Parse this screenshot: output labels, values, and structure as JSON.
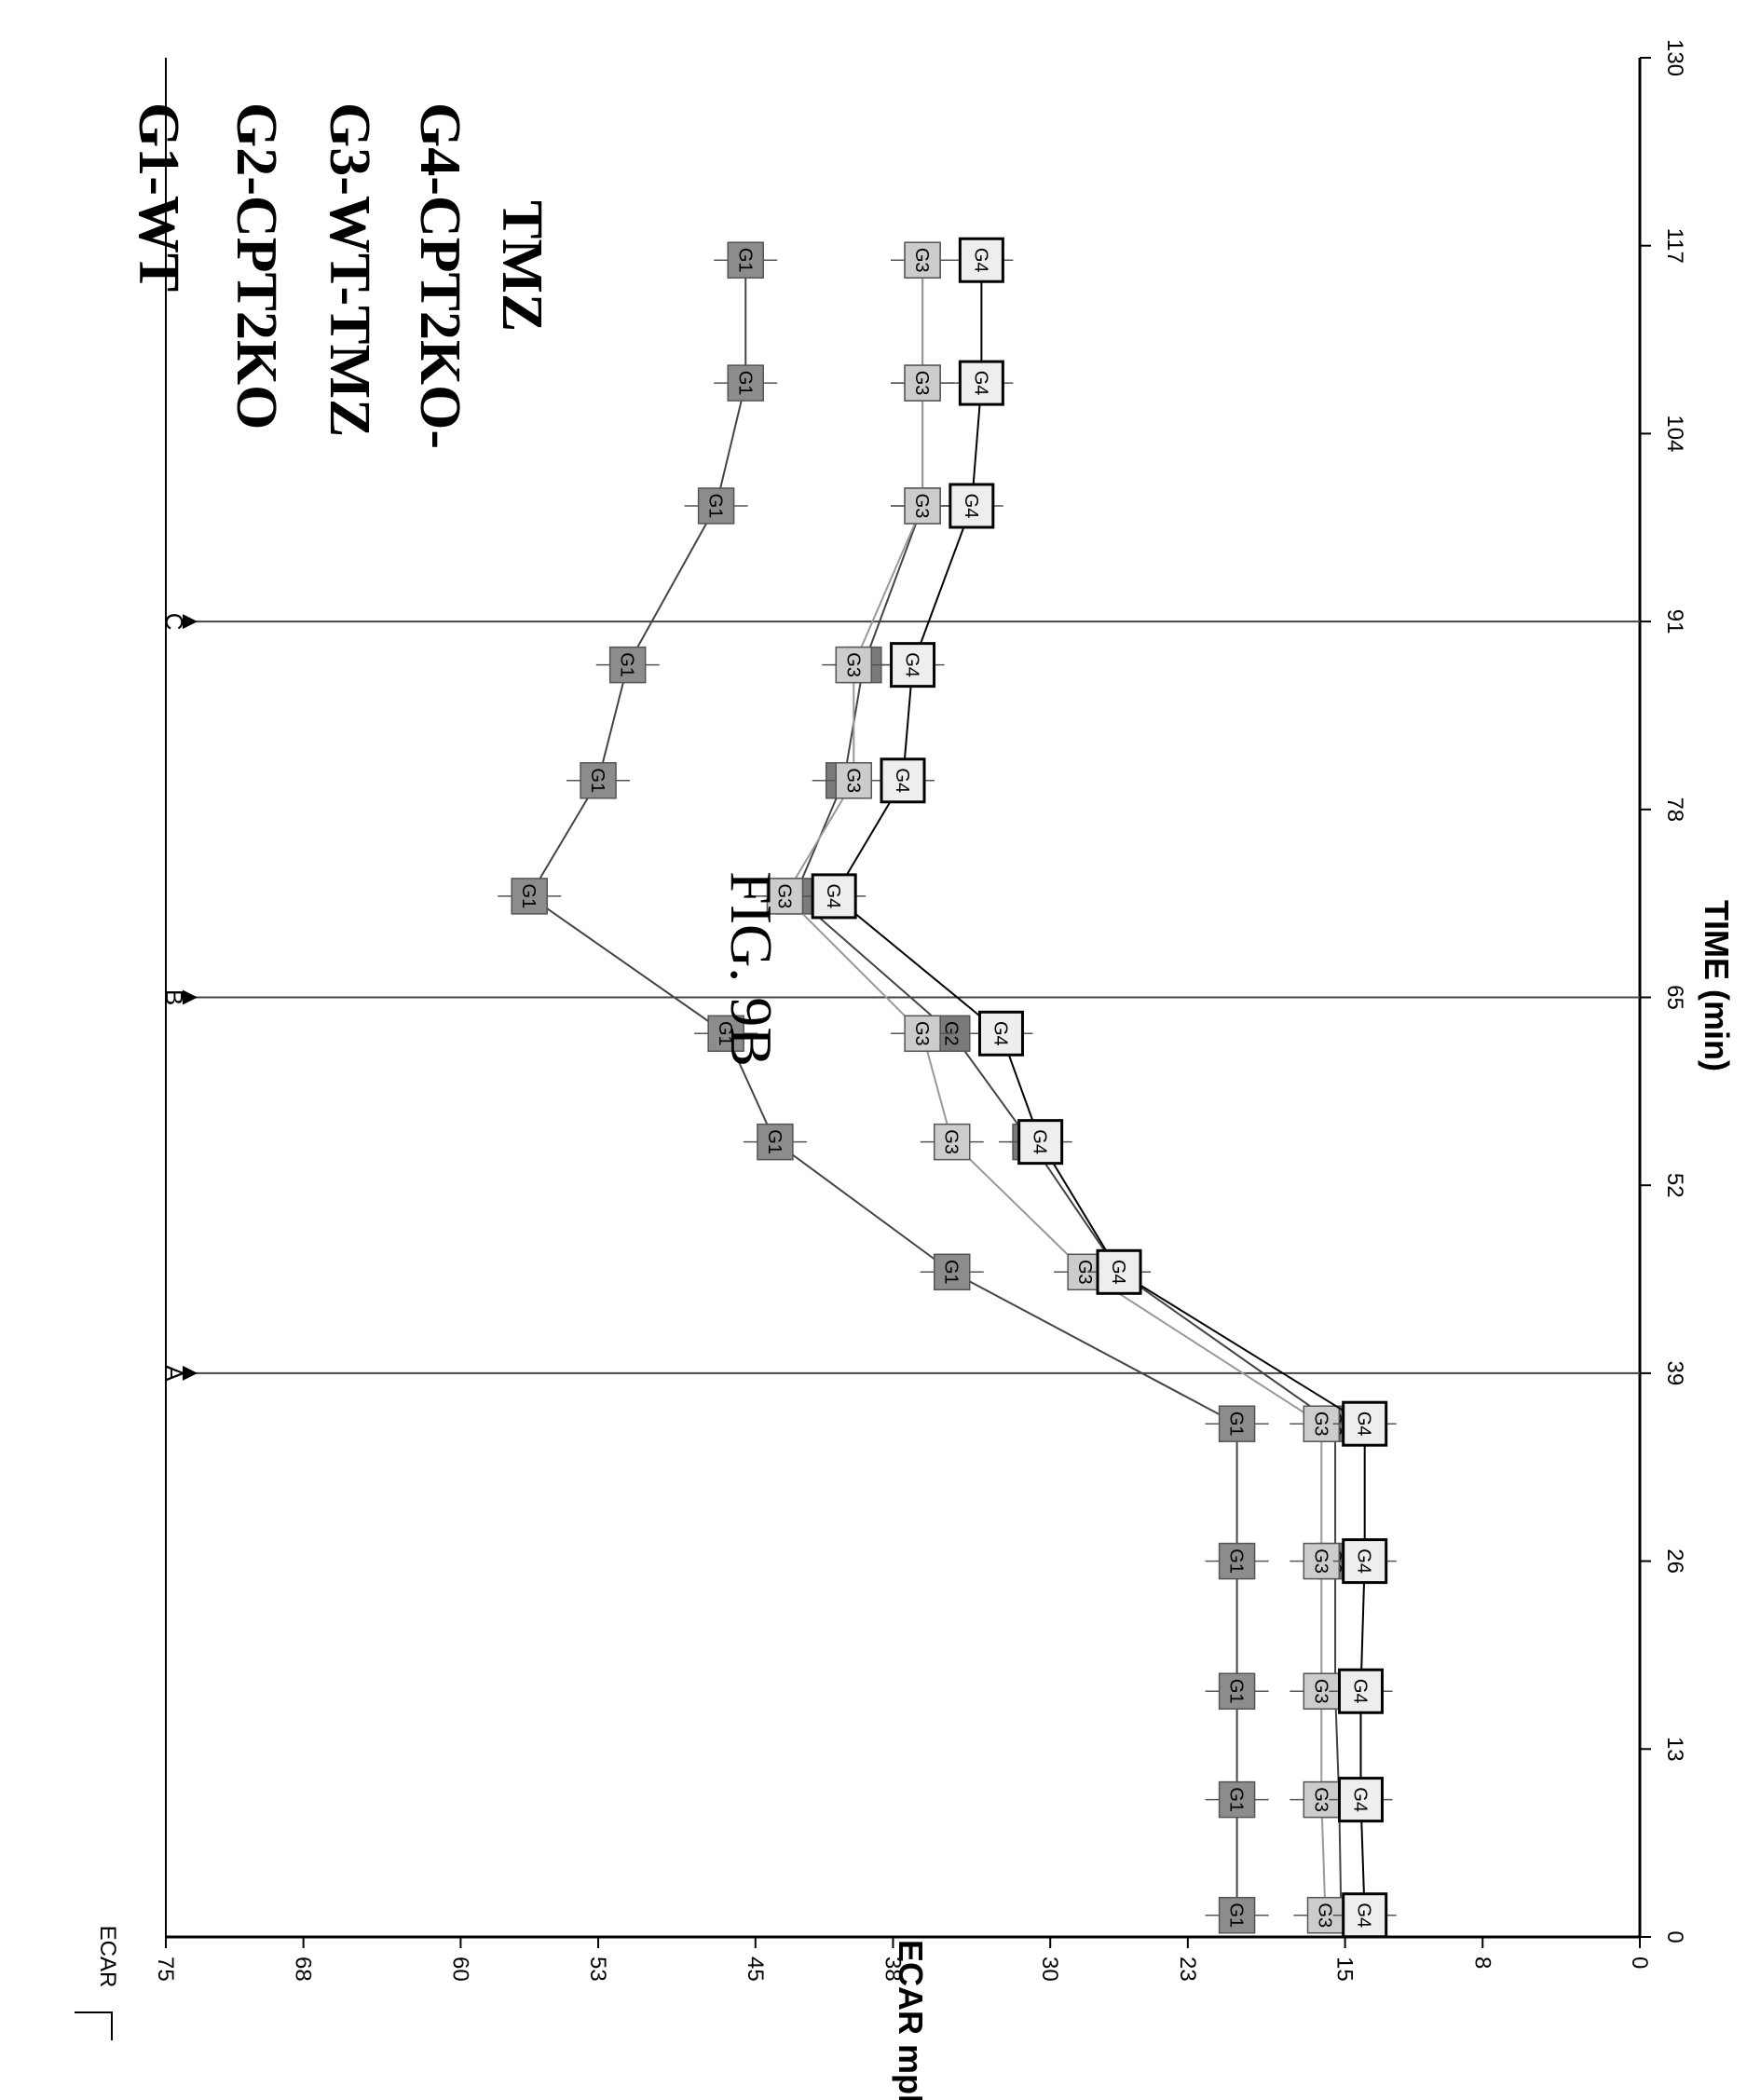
{
  "chart_data": {
    "type": "line",
    "title": "FIG. 9B",
    "xlabel": "TIME (min)",
    "ylabel": "ECAR mpH/min",
    "legend_box_label": "ECAR",
    "x_ticks": [
      "0",
      "13",
      "26",
      "39",
      "52",
      "65",
      "78",
      "91",
      "104",
      "117",
      "130"
    ],
    "y_ticks": [
      "0",
      "8",
      "15",
      "23",
      "30",
      "38",
      "45",
      "53",
      "60",
      "68",
      "75"
    ],
    "xlim": [
      0,
      130
    ],
    "ylim": [
      0,
      75
    ],
    "grid": false,
    "legend_position": "top-right",
    "legend": [
      "G1-WT",
      "G2-CPT2KO",
      "G3-WT-TMZ",
      "G4-CPT2KO-",
      "TMZ"
    ],
    "event_lines": [
      {
        "label": "A",
        "x": 39
      },
      {
        "label": "B",
        "x": 65
      },
      {
        "label": "C",
        "x": 91
      }
    ],
    "x": [
      1.5,
      9.5,
      17,
      26,
      35.5,
      46,
      55,
      62.5,
      72,
      80,
      88,
      99,
      107.5,
      116
    ],
    "series": [
      {
        "marker": "G1",
        "fill": "#8c8c8c",
        "line": "#444444",
        "values": [
          20.5,
          20.5,
          20.5,
          20.5,
          20.5,
          35,
          44,
          46.5,
          56.5,
          53,
          51.5,
          47,
          45.5,
          45.5
        ]
      },
      {
        "marker": "G2",
        "fill": "#7a7a7a",
        "line": "#444444",
        "values": [
          15.2,
          15.3,
          15.5,
          15.5,
          15.5,
          26.5,
          31,
          35,
          43,
          40.5,
          39.5,
          36.5,
          36.5,
          36.5
        ]
      },
      {
        "marker": "G3",
        "fill": "#cccccc",
        "line": "#999999",
        "values": [
          16,
          16.2,
          16.2,
          16.2,
          16.2,
          28.2,
          35,
          36.5,
          43.5,
          40,
          40,
          36.5,
          36.5,
          36.5
        ]
      },
      {
        "marker": "G4",
        "fill": "#eeeeee",
        "line": "#000000",
        "values": [
          14,
          14.2,
          14.2,
          14,
          14,
          26.5,
          30.5,
          32.5,
          41,
          37.5,
          37,
          34,
          33.5,
          33.5
        ]
      }
    ]
  }
}
